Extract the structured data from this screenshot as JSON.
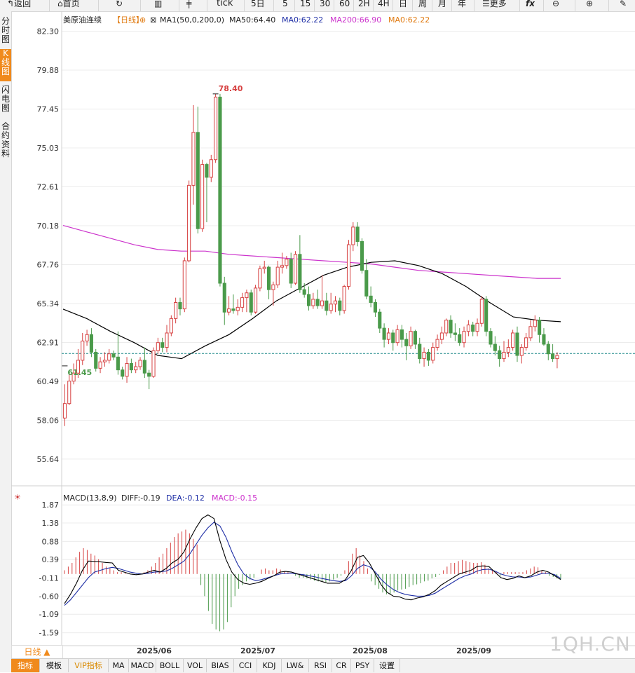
{
  "toolbar": {
    "items": [
      {
        "label": "返回",
        "icon": "back-arrow-icon"
      },
      {
        "label": "首页",
        "icon": "home-icon"
      },
      {
        "label": "",
        "icon": "refresh-icon"
      },
      {
        "label": "",
        "icon": "bar-chart-icon"
      },
      {
        "label": "",
        "icon": "candlestick-icon"
      },
      {
        "label": "tick"
      },
      {
        "label": "5日"
      },
      {
        "label": "5"
      },
      {
        "label": "15"
      },
      {
        "label": "30"
      },
      {
        "label": "60"
      },
      {
        "label": "2H"
      },
      {
        "label": "4H"
      },
      {
        "label": "日"
      },
      {
        "label": "周"
      },
      {
        "label": "月"
      },
      {
        "label": "年"
      },
      {
        "label": "更多",
        "icon": "menu-icon"
      },
      {
        "label": "",
        "icon": "formula-icon"
      },
      {
        "label": "",
        "icon": "zoom-out-icon"
      },
      {
        "label": "",
        "icon": "zoom-in-icon"
      },
      {
        "label": "",
        "icon": "pen-icon"
      }
    ]
  },
  "side_tabs": [
    {
      "label": "分时图",
      "active": false
    },
    {
      "label": "K线图",
      "active": true
    },
    {
      "label": "闪电图",
      "active": false
    },
    {
      "label": "合约资料",
      "active": false
    }
  ],
  "legend": {
    "symbol": "美原油连续",
    "period": "【日线】",
    "ma_label": "MA1(50,0,200,0)",
    "ma50": "MA50:64.40",
    "ma0": "MA0:62.22",
    "ma200": "MA200:66.90",
    "ma0b": "MA0:62.22"
  },
  "macd_legend": {
    "name": "MACD(13,8,9)",
    "diff": "DIFF:-0.19",
    "dea": "DEA:-0.12",
    "macd": "MACD:-0.15"
  },
  "colors": {
    "up": "#d64040",
    "down": "#4a9a4a",
    "ma50": "#000000",
    "ma200": "#cc33cc",
    "dea": "#1f2fa6",
    "ref": "#1f8a8a",
    "grid": "#ececec"
  },
  "bottom_tabs": [
    "指标",
    "模板",
    "VIP指标",
    "MA",
    "MACD",
    "BOLL",
    "VOL",
    "BIAS",
    "CCI",
    "KDJ",
    "LW&",
    "RSI",
    "CR",
    "PSY",
    "设置"
  ],
  "kline_label": "日线 ▲",
  "watermark": "1QH.CN",
  "chart_data": [
    {
      "type": "candlestick",
      "title": "美原油连续 【日线】",
      "x_labels": [
        "2025/06",
        "2025/07",
        "2025/08",
        "2025/09"
      ],
      "yticks": [
        82.3,
        79.88,
        77.45,
        75.03,
        72.61,
        70.18,
        67.76,
        65.34,
        62.91,
        60.49,
        58.06,
        55.64
      ],
      "ylim": [
        54.5,
        83.2
      ],
      "annotations": [
        {
          "label": "78.40",
          "value": 78.4,
          "kind": "high"
        },
        {
          "label": "61.45",
          "value": 61.45,
          "kind": "low"
        }
      ],
      "reference_line": 62.22,
      "candles": [
        [
          58.2,
          59.1,
          57.7,
          60.3
        ],
        [
          59.1,
          60.5,
          59.0,
          61.1
        ],
        [
          60.5,
          61.0,
          60.3,
          61.6
        ],
        [
          61.0,
          61.8,
          60.7,
          62.5
        ],
        [
          61.8,
          63.0,
          61.5,
          63.5
        ],
        [
          63.0,
          63.4,
          62.7,
          63.7
        ],
        [
          63.4,
          62.3,
          62.0,
          63.8
        ],
        [
          62.3,
          61.3,
          61.1,
          62.5
        ],
        [
          61.3,
          61.7,
          61.0,
          62.0
        ],
        [
          61.7,
          61.8,
          61.4,
          62.3
        ],
        [
          61.8,
          62.2,
          61.6,
          62.5
        ],
        [
          62.2,
          62.0,
          61.8,
          62.4
        ],
        [
          62.0,
          61.2,
          60.9,
          63.6
        ],
        [
          61.2,
          60.8,
          60.6,
          61.4
        ],
        [
          60.8,
          61.6,
          60.4,
          62.0
        ],
        [
          61.6,
          61.2,
          61.0,
          61.9
        ],
        [
          61.2,
          61.4,
          61.0,
          61.7
        ],
        [
          61.4,
          61.8,
          61.2,
          62.0
        ],
        [
          61.8,
          61.0,
          60.7,
          62.6
        ],
        [
          61.0,
          60.8,
          60.0,
          61.2
        ],
        [
          60.8,
          62.4,
          60.7,
          62.6
        ],
        [
          62.4,
          62.9,
          62.2,
          63.2
        ],
        [
          62.9,
          62.6,
          62.3,
          63.2
        ],
        [
          62.6,
          63.5,
          62.3,
          64.0
        ],
        [
          63.5,
          64.4,
          63.3,
          64.6
        ],
        [
          64.4,
          65.4,
          64.1,
          65.7
        ],
        [
          65.4,
          65.0,
          64.6,
          65.7
        ],
        [
          65.0,
          68.0,
          64.8,
          68.2
        ],
        [
          68.0,
          72.7,
          67.9,
          73.0
        ],
        [
          72.7,
          76.0,
          71.5,
          77.7
        ],
        [
          76.0,
          70.0,
          69.7,
          77.6
        ],
        [
          70.0,
          74.0,
          69.8,
          74.3
        ],
        [
          74.0,
          73.2,
          70.4,
          74.1
        ],
        [
          73.2,
          74.3,
          72.9,
          74.6
        ],
        [
          74.3,
          78.2,
          74.1,
          78.4
        ],
        [
          78.2,
          66.6,
          66.4,
          78.4
        ],
        [
          66.6,
          64.8,
          64.0,
          67.0
        ],
        [
          64.8,
          65.0,
          64.6,
          65.8
        ],
        [
          65.0,
          64.9,
          64.7,
          65.9
        ],
        [
          64.9,
          65.1,
          64.6,
          65.6
        ],
        [
          65.1,
          65.7,
          64.8,
          66.0
        ],
        [
          65.7,
          66.0,
          64.8,
          66.2
        ],
        [
          66.0,
          64.8,
          64.6,
          66.2
        ],
        [
          64.8,
          66.3,
          64.7,
          66.5
        ],
        [
          66.3,
          67.5,
          66.1,
          67.7
        ],
        [
          67.5,
          67.6,
          67.2,
          68.0
        ],
        [
          67.6,
          66.2,
          65.6,
          67.7
        ],
        [
          66.2,
          66.5,
          65.2,
          66.7
        ],
        [
          66.5,
          67.6,
          66.3,
          68.0
        ],
        [
          67.6,
          67.7,
          67.2,
          68.5
        ],
        [
          67.7,
          68.1,
          67.5,
          68.3
        ],
        [
          68.1,
          66.6,
          66.3,
          68.5
        ],
        [
          66.6,
          68.4,
          66.5,
          68.6
        ],
        [
          68.4,
          66.2,
          66.0,
          69.6
        ],
        [
          66.2,
          65.9,
          65.7,
          66.6
        ],
        [
          65.9,
          65.2,
          64.9,
          66.4
        ],
        [
          65.2,
          65.6,
          65.0,
          66.0
        ],
        [
          65.6,
          65.2,
          65.0,
          66.2
        ],
        [
          65.2,
          65.5,
          65.0,
          67.1
        ],
        [
          65.5,
          64.9,
          64.6,
          66.0
        ],
        [
          64.9,
          65.3,
          64.7,
          66.0
        ],
        [
          65.3,
          65.5,
          64.8,
          65.8
        ],
        [
          65.5,
          64.9,
          64.6,
          65.7
        ],
        [
          64.9,
          66.4,
          64.7,
          66.5
        ],
        [
          66.4,
          69.0,
          66.2,
          69.3
        ],
        [
          69.0,
          70.1,
          68.6,
          70.4
        ],
        [
          70.1,
          69.2,
          68.9,
          70.4
        ],
        [
          69.2,
          67.4,
          67.2,
          69.4
        ],
        [
          67.4,
          65.8,
          65.6,
          68.1
        ],
        [
          65.8,
          65.4,
          65.1,
          66.4
        ],
        [
          65.4,
          64.8,
          64.5,
          65.6
        ],
        [
          64.8,
          63.8,
          63.5,
          65.0
        ],
        [
          63.8,
          63.1,
          62.6,
          64.1
        ],
        [
          63.1,
          63.5,
          62.8,
          63.8
        ],
        [
          63.5,
          62.9,
          62.4,
          63.7
        ],
        [
          62.9,
          63.7,
          62.7,
          64.0
        ],
        [
          63.7,
          63.1,
          62.6,
          64.0
        ],
        [
          63.1,
          62.7,
          61.8,
          63.5
        ],
        [
          62.7,
          63.6,
          62.5,
          63.9
        ],
        [
          63.6,
          62.8,
          62.5,
          63.7
        ],
        [
          62.8,
          61.9,
          61.6,
          63.2
        ],
        [
          61.9,
          62.3,
          61.4,
          62.6
        ],
        [
          62.3,
          61.8,
          61.45,
          62.5
        ],
        [
          61.8,
          62.6,
          61.6,
          62.9
        ],
        [
          62.6,
          63.1,
          62.4,
          63.4
        ],
        [
          63.1,
          63.5,
          62.8,
          63.9
        ],
        [
          63.5,
          64.3,
          63.3,
          64.4
        ],
        [
          64.3,
          63.5,
          63.2,
          64.6
        ],
        [
          63.5,
          63.4,
          63.0,
          64.1
        ],
        [
          63.4,
          62.9,
          62.7,
          63.8
        ],
        [
          62.9,
          63.6,
          62.6,
          63.9
        ],
        [
          63.6,
          64.0,
          63.3,
          64.3
        ],
        [
          64.0,
          63.6,
          63.3,
          64.2
        ],
        [
          63.6,
          64.1,
          63.3,
          64.4
        ],
        [
          64.1,
          65.6,
          63.9,
          65.8
        ],
        [
          65.6,
          63.6,
          63.3,
          65.8
        ],
        [
          63.6,
          62.8,
          62.6,
          63.8
        ],
        [
          62.8,
          62.4,
          62.1,
          63.3
        ],
        [
          62.4,
          61.9,
          61.4,
          62.7
        ],
        [
          61.9,
          62.3,
          61.7,
          63.0
        ],
        [
          62.3,
          62.6,
          62.0,
          63.1
        ],
        [
          62.6,
          63.5,
          62.4,
          63.7
        ],
        [
          63.5,
          62.1,
          61.7,
          63.9
        ],
        [
          62.1,
          62.6,
          61.6,
          62.8
        ],
        [
          62.6,
          63.2,
          62.4,
          63.5
        ],
        [
          63.2,
          63.9,
          63.0,
          64.3
        ],
        [
          63.9,
          64.3,
          63.6,
          64.6
        ],
        [
          64.3,
          63.4,
          62.9,
          64.5
        ],
        [
          63.4,
          62.8,
          62.7,
          63.8
        ],
        [
          62.8,
          62.2,
          61.8,
          63.0
        ],
        [
          62.2,
          61.9,
          61.7,
          62.8
        ],
        [
          61.9,
          62.1,
          61.3,
          62.3
        ]
      ],
      "ma50": [
        64.99,
        64.4,
        63.6,
        62.9,
        62.1,
        61.9,
        62.7,
        63.4,
        64.4,
        65.5,
        66.3,
        67.1,
        67.6,
        67.9,
        68.0,
        67.7,
        67.2,
        66.4,
        65.4,
        64.5,
        64.3,
        64.2
      ],
      "ma200": [
        70.2,
        69.8,
        69.4,
        69.0,
        68.7,
        68.6,
        68.6,
        68.4,
        68.3,
        68.2,
        68.1,
        68.0,
        67.9,
        67.8,
        67.6,
        67.4,
        67.3,
        67.2,
        67.1,
        67.0,
        66.9,
        66.9
      ]
    },
    {
      "type": "macd",
      "title": "MACD(13,8,9)",
      "yticks": [
        1.87,
        1.38,
        0.88,
        0.39,
        -0.11,
        -0.6,
        -1.09,
        -1.59
      ],
      "ylim": [
        -1.75,
        1.95
      ],
      "diff": [
        -0.8,
        -0.55,
        -0.25,
        0.1,
        0.35,
        0.34,
        0.33,
        0.31,
        0.3,
        0.1,
        0.05,
        0.0,
        -0.02,
        0.0,
        0.05,
        0.1,
        0.05,
        0.15,
        0.3,
        0.4,
        0.6,
        0.95,
        1.25,
        1.5,
        1.6,
        1.5,
        0.9,
        0.4,
        0.05,
        -0.15,
        -0.25,
        -0.28,
        -0.25,
        -0.2,
        -0.12,
        -0.05,
        0.05,
        0.07,
        0.05,
        0.0,
        -0.05,
        -0.1,
        -0.15,
        -0.2,
        -0.25,
        -0.25,
        -0.25,
        -0.15,
        0.1,
        0.45,
        0.5,
        0.3,
        0.0,
        -0.3,
        -0.5,
        -0.6,
        -0.62,
        -0.68,
        -0.7,
        -0.65,
        -0.62,
        -0.55,
        -0.45,
        -0.3,
        -0.2,
        -0.1,
        0.0,
        0.05,
        0.1,
        0.2,
        0.22,
        0.2,
        0.05,
        -0.1,
        -0.15,
        -0.12,
        -0.05,
        -0.1,
        -0.05,
        0.05,
        0.1,
        0.05,
        -0.05,
        -0.15
      ],
      "dea": [
        -0.85,
        -0.7,
        -0.5,
        -0.3,
        -0.1,
        0.05,
        0.1,
        0.15,
        0.18,
        0.15,
        0.1,
        0.05,
        0.02,
        0.0,
        0.02,
        0.05,
        0.06,
        0.08,
        0.15,
        0.25,
        0.35,
        0.55,
        0.8,
        1.05,
        1.25,
        1.4,
        1.3,
        1.0,
        0.6,
        0.25,
        0.0,
        -0.12,
        -0.18,
        -0.15,
        -0.1,
        -0.05,
        0.0,
        0.02,
        0.02,
        0.0,
        -0.02,
        -0.05,
        -0.08,
        -0.12,
        -0.15,
        -0.18,
        -0.2,
        -0.18,
        -0.05,
        0.15,
        0.25,
        0.2,
        0.05,
        -0.15,
        -0.3,
        -0.42,
        -0.5,
        -0.55,
        -0.58,
        -0.6,
        -0.6,
        -0.58,
        -0.52,
        -0.42,
        -0.32,
        -0.22,
        -0.12,
        -0.05,
        0.0,
        0.08,
        0.12,
        0.13,
        0.08,
        0.0,
        -0.05,
        -0.08,
        -0.08,
        -0.1,
        -0.08,
        -0.03,
        0.02,
        0.02,
        -0.02,
        -0.12
      ],
      "histogram": [
        0.1,
        0.2,
        0.3,
        0.45,
        0.6,
        0.7,
        0.65,
        0.55,
        0.5,
        0.4,
        0.3,
        0.2,
        0.15,
        0.1,
        0.05,
        0.05,
        0.03,
        0.0,
        -0.02,
        -0.02,
        0.0,
        0.05,
        0.1,
        0.2,
        0.3,
        0.45,
        0.55,
        0.7,
        0.85,
        1.0,
        1.1,
        1.15,
        1.2,
        1.1,
        0.95,
        0.8,
        -0.3,
        -0.6,
        -1.0,
        -1.35,
        -1.5,
        -1.55,
        -1.5,
        -1.3,
        -0.9,
        -0.6,
        -0.4,
        -0.3,
        -0.2,
        -0.15,
        -0.1,
        0.0,
        0.12,
        0.15,
        0.1,
        0.1,
        0.15,
        0.12,
        0.08,
        0.05,
        0.0,
        -0.05,
        -0.1,
        -0.1,
        -0.12,
        -0.15,
        -0.18,
        -0.2,
        -0.2,
        -0.22,
        -0.2,
        -0.15,
        -0.1,
        -0.05,
        0.1,
        0.35,
        0.55,
        0.7,
        0.5,
        0.35,
        0.15,
        -0.2,
        -0.3,
        -0.4,
        -0.5,
        -0.55,
        -0.55,
        -0.5,
        -0.45,
        -0.42,
        -0.4,
        -0.35,
        -0.3,
        -0.28,
        -0.25,
        -0.2,
        -0.18,
        -0.12,
        -0.08,
        -0.02,
        0.1,
        0.2,
        0.3,
        0.3,
        0.35,
        0.38,
        0.35,
        0.32,
        0.3,
        0.3,
        0.32,
        0.25,
        0.15,
        0.1,
        0.05,
        -0.05,
        0.05,
        0.05,
        0.05,
        0.05,
        0.05,
        0.05,
        0.1,
        0.15,
        0.2,
        0.18,
        0.1,
        0.05,
        -0.05,
        -0.08,
        -0.12,
        -0.15
      ]
    }
  ]
}
